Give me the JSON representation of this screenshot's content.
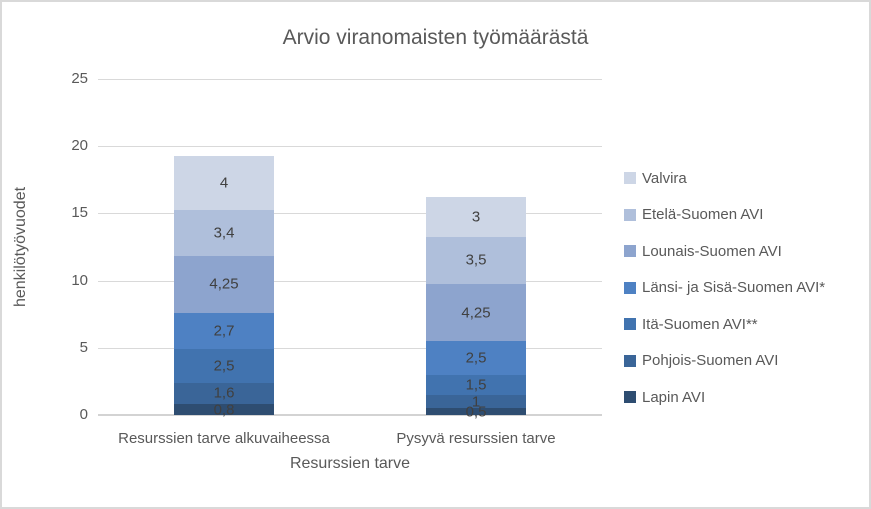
{
  "chart_data": {
    "type": "bar",
    "stacked": true,
    "title": "Arvio viranomaisten työmäärästä",
    "xlabel": "Resurssien tarve",
    "ylabel": "henkilötyövuodet",
    "ylim": [
      0,
      25
    ],
    "yticks": [
      0,
      5,
      10,
      15,
      20,
      25
    ],
    "grid": true,
    "legend_position": "right",
    "text_color": "#595959",
    "data_label_color": "#404040",
    "categories": [
      "Resurssien tarve alkuvaiheessa",
      "Pysyvä resurssien tarve"
    ],
    "series": [
      {
        "name": "Valvira",
        "color": "#CDD6E6",
        "values": [
          4,
          3
        ],
        "labels": [
          "4",
          "3"
        ]
      },
      {
        "name": "Etelä-Suomen AVI",
        "color": "#AFBFDB",
        "values": [
          3.4,
          3.5
        ],
        "labels": [
          "3,4",
          "3,5"
        ]
      },
      {
        "name": "Lounais-Suomen AVI",
        "color": "#8DA4CE",
        "values": [
          4.25,
          4.25
        ],
        "labels": [
          "4,25",
          "4,25"
        ]
      },
      {
        "name": "Länsi- ja Sisä-Suomen AVI*",
        "color": "#4E81C3",
        "values": [
          2.7,
          2.5
        ],
        "labels": [
          "2,7",
          "2,5"
        ]
      },
      {
        "name": "Itä-Suomen AVI**",
        "color": "#4173AF",
        "values": [
          2.5,
          1.5
        ],
        "labels": [
          "2,5",
          "1,5"
        ]
      },
      {
        "name": "Pohjois-Suomen AVI",
        "color": "#3A6598",
        "values": [
          1.6,
          1
        ],
        "labels": [
          "1,6",
          "1"
        ]
      },
      {
        "name": "Lapin AVI",
        "color": "#2E4D71",
        "values": [
          0.8,
          0.5
        ],
        "labels": [
          "0,8",
          "0,5"
        ]
      }
    ],
    "stack_note": "bottom-to-top stacking is the reverse of series (legend) order",
    "stack_totals": [
      19.25,
      16.25
    ]
  }
}
